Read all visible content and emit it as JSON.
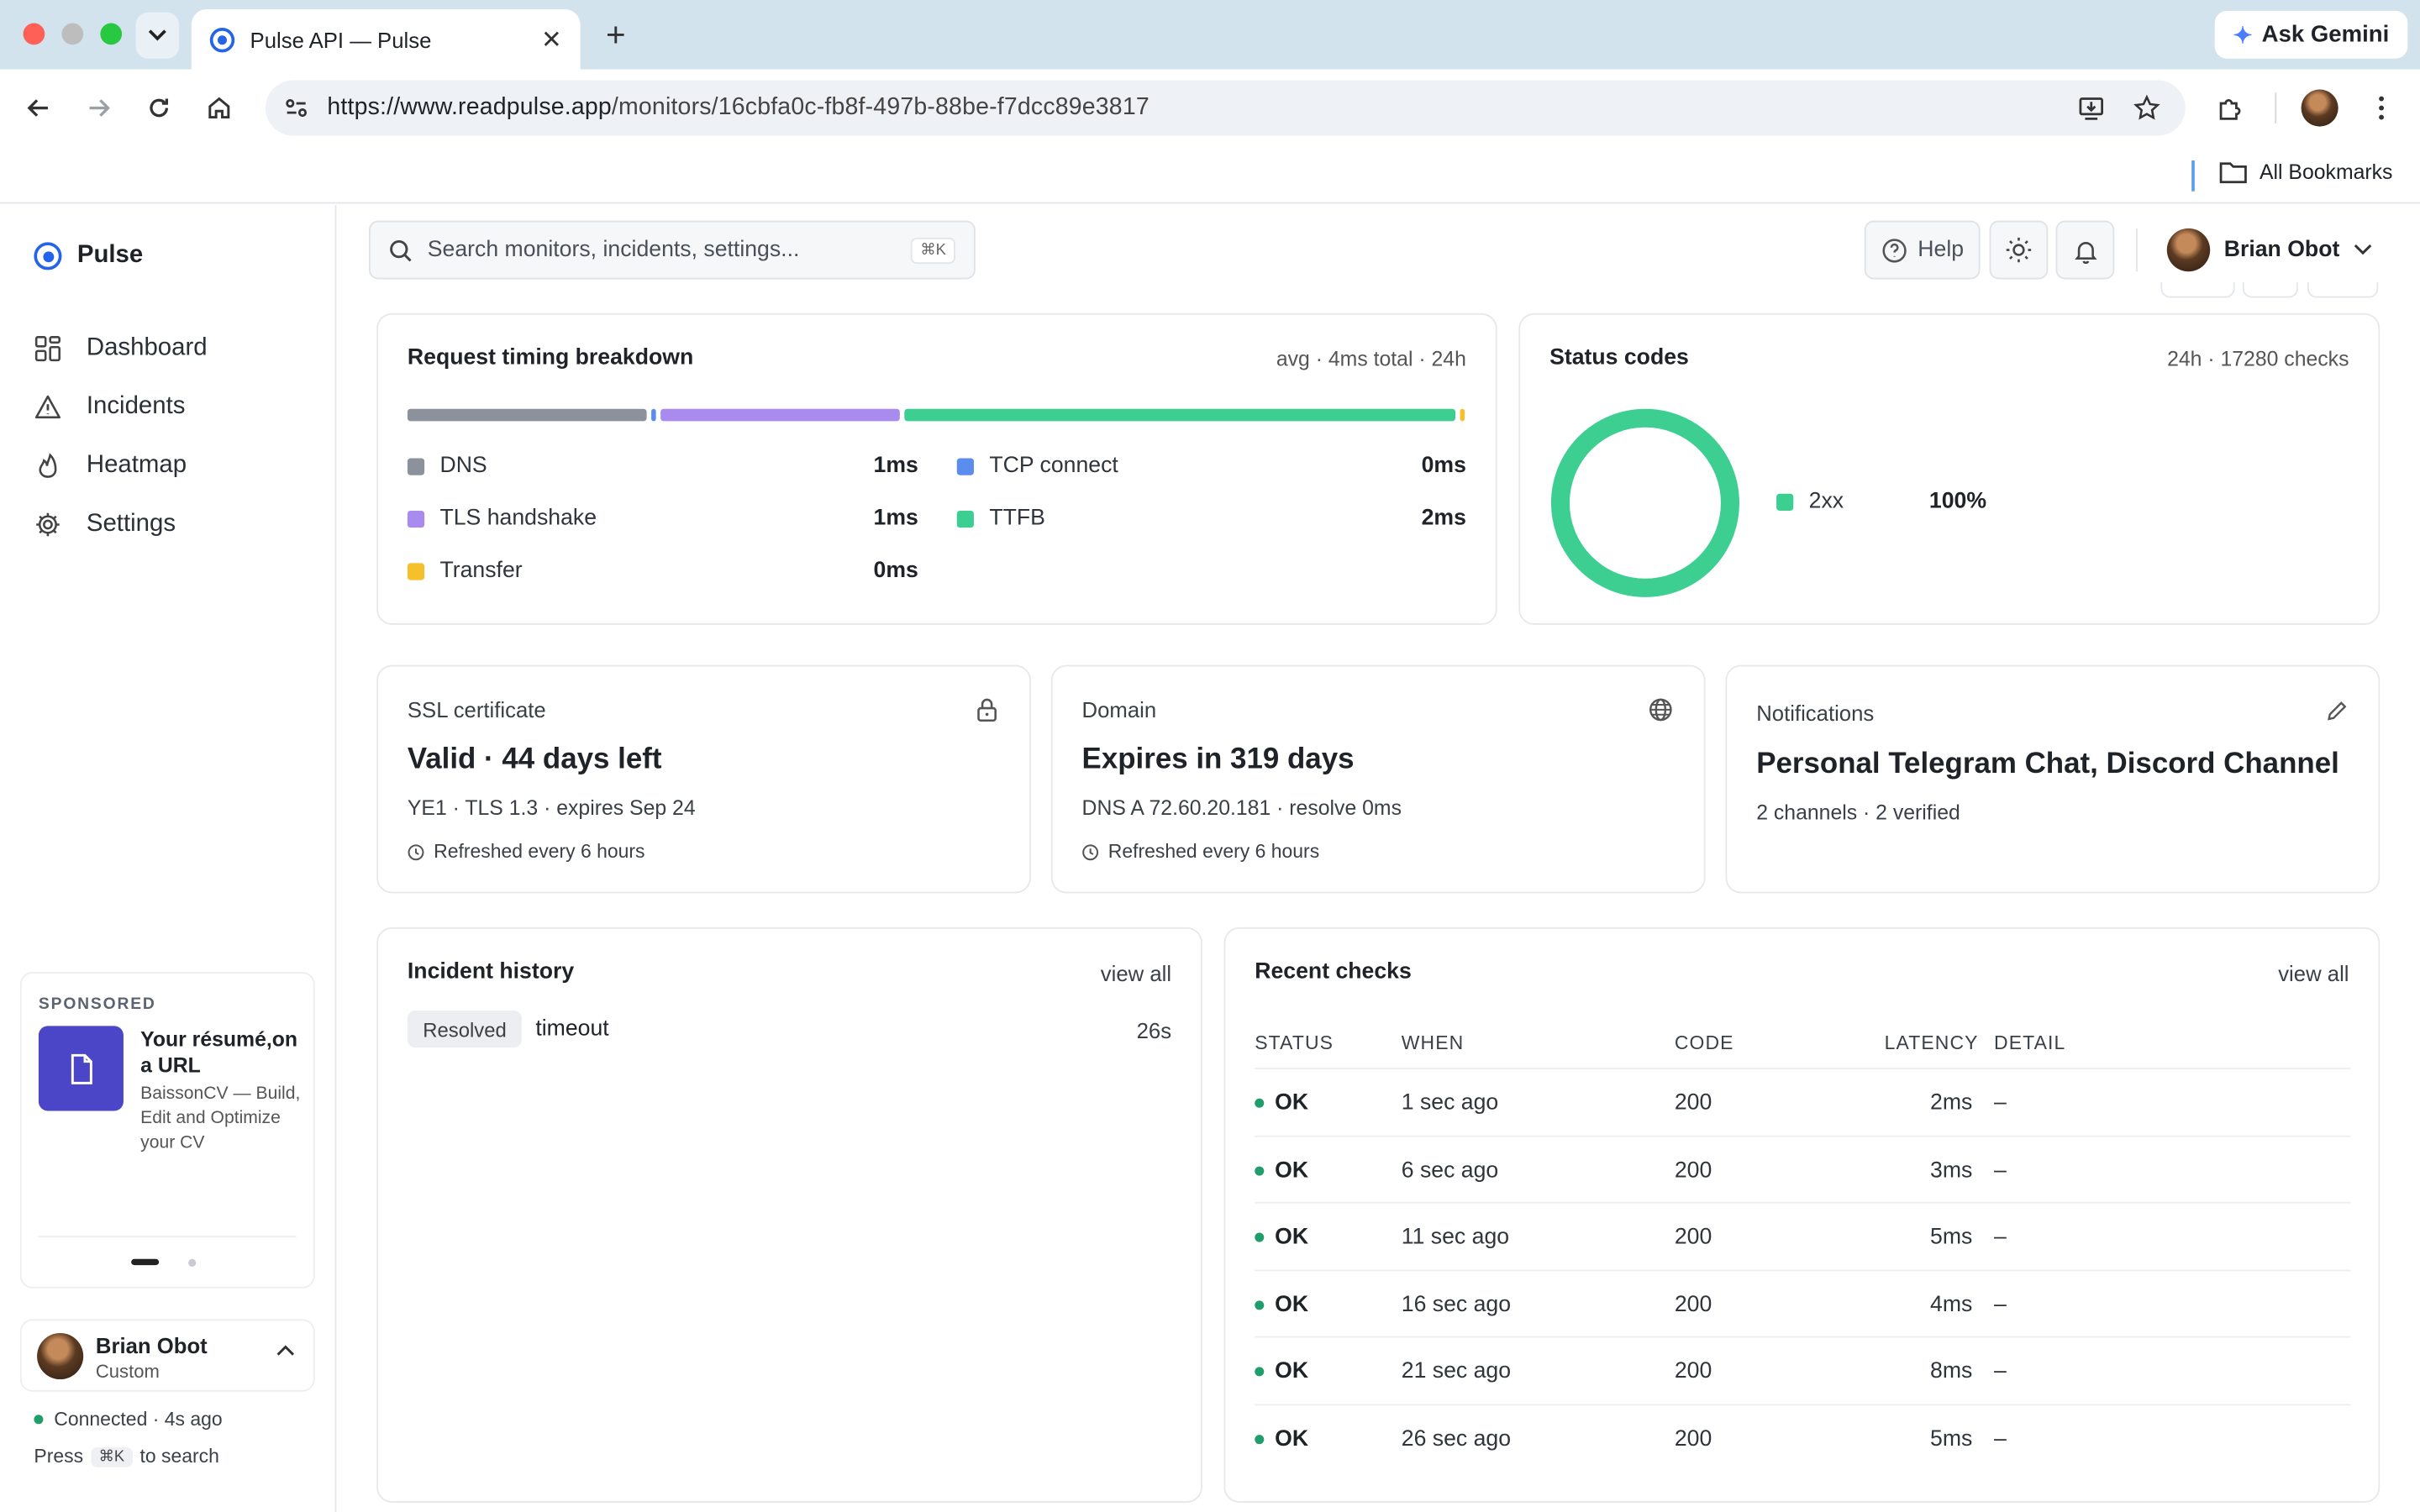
{
  "browser": {
    "tab_title": "Pulse API — Pulse",
    "url_domain": "https://www.readpulse.app",
    "url_path": "/monitors/16cbfa0c-fb8f-497b-88be-f7dcc89e3817",
    "gemini_label": "Ask Gemini",
    "bookmarks_label": "All Bookmarks"
  },
  "sidebar": {
    "brand": "Pulse",
    "items": [
      {
        "label": "Dashboard",
        "icon": "grid-icon"
      },
      {
        "label": "Incidents",
        "icon": "warning-icon"
      },
      {
        "label": "Heatmap",
        "icon": "flame-icon"
      },
      {
        "label": "Settings",
        "icon": "gear-icon"
      }
    ],
    "sponsored": {
      "tag": "SPONSORED",
      "title": "Your résumé,on a URL",
      "desc": "BaissonCV — Build, Edit and Optimize your CV"
    },
    "user": {
      "name": "Brian Obot",
      "plan": "Custom"
    },
    "connection": "Connected · 4s ago",
    "press_prefix": "Press",
    "press_key": "⌘K",
    "press_suffix": "to search"
  },
  "header": {
    "search_placeholder": "Search monitors, incidents, settings...",
    "search_shortcut": "⌘K",
    "help_label": "Help",
    "user_name": "Brian Obot"
  },
  "timing": {
    "title": "Request timing breakdown",
    "meta": "avg · 4ms total · 24h",
    "segments": [
      {
        "name": "DNS",
        "fraction": 0.23,
        "color": "#8b929b"
      },
      {
        "name": "TCP connect",
        "fraction": 0.005,
        "color": "#5b8def"
      },
      {
        "name": "TLS handshake",
        "fraction": 0.23,
        "color": "#a98bef"
      },
      {
        "name": "TTFB",
        "fraction": 0.53,
        "color": "#3ccf91"
      },
      {
        "name": "Transfer",
        "fraction": 0.005,
        "color": "#f5c02c"
      }
    ],
    "legend": [
      {
        "name": "DNS",
        "value": "1ms",
        "color": "#8b929b"
      },
      {
        "name": "TCP connect",
        "value": "0ms",
        "color": "#5b8def"
      },
      {
        "name": "TLS handshake",
        "value": "1ms",
        "color": "#a98bef"
      },
      {
        "name": "TTFB",
        "value": "2ms",
        "color": "#3ccf91"
      },
      {
        "name": "Transfer",
        "value": "0ms",
        "color": "#f5c02c"
      }
    ]
  },
  "status_codes": {
    "title": "Status codes",
    "meta": "24h · 17280 checks",
    "legend": {
      "name": "2xx",
      "value": "100%",
      "color": "#3ccf91"
    },
    "share_2xx": 1.0
  },
  "ssl": {
    "label": "SSL certificate",
    "headline": "Valid · 44 days left",
    "sub": "YE1 · TLS 1.3 · expires Sep 24",
    "refresh": "Refreshed every 6 hours"
  },
  "domain": {
    "label": "Domain",
    "headline": "Expires in 319 days",
    "sub": "DNS A 72.60.20.181 · resolve 0ms",
    "refresh": "Refreshed every 6 hours"
  },
  "notifications": {
    "label": "Notifications",
    "headline": "Personal Telegram Chat, Discord Channel",
    "sub": "2 channels · 2 verified"
  },
  "incidents": {
    "title": "Incident history",
    "view_all": "view all",
    "items": [
      {
        "status": "Resolved",
        "name": "timeout",
        "duration": "26s"
      }
    ]
  },
  "checks": {
    "title": "Recent checks",
    "view_all": "view all",
    "columns": [
      "STATUS",
      "WHEN",
      "CODE",
      "LATENCY",
      "DETAIL"
    ],
    "rows": [
      {
        "status": "OK",
        "when": "1 sec ago",
        "code": "200",
        "latency": "2ms",
        "detail": "–"
      },
      {
        "status": "OK",
        "when": "6 sec ago",
        "code": "200",
        "latency": "3ms",
        "detail": "–"
      },
      {
        "status": "OK",
        "when": "11 sec ago",
        "code": "200",
        "latency": "5ms",
        "detail": "–"
      },
      {
        "status": "OK",
        "when": "16 sec ago",
        "code": "200",
        "latency": "4ms",
        "detail": "–"
      },
      {
        "status": "OK",
        "when": "21 sec ago",
        "code": "200",
        "latency": "8ms",
        "detail": "–"
      },
      {
        "status": "OK",
        "when": "26 sec ago",
        "code": "200",
        "latency": "5ms",
        "detail": "–"
      }
    ]
  },
  "colors": {
    "accent": "#2563eb",
    "ok": "#1f9d6b",
    "donut": "#3ccf91"
  }
}
